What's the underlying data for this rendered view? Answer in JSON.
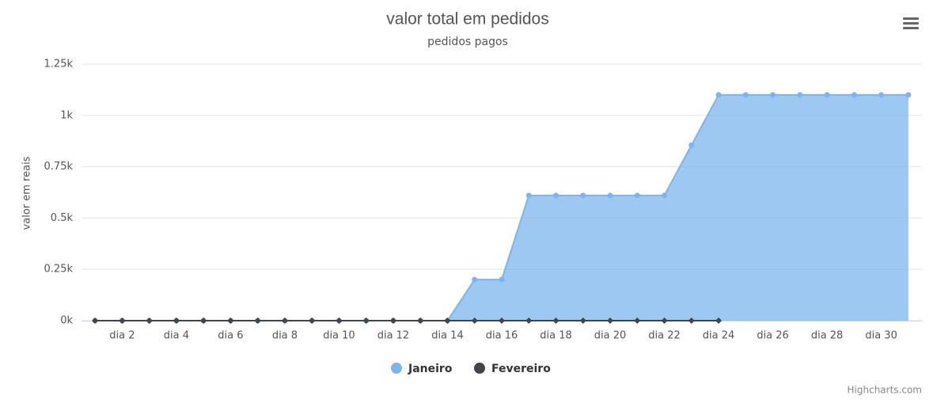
{
  "chart_data": {
    "type": "area",
    "title": "valor total em pedidos",
    "subtitle": "pedidos pagos",
    "y_label": "valor em reais",
    "credits": "Highcharts.com",
    "categories": [
      null,
      "dia 2",
      null,
      "dia 4",
      null,
      "dia 6",
      null,
      "dia 8",
      null,
      "dia 10",
      null,
      "dia 12",
      null,
      "dia 14",
      null,
      "dia 16",
      null,
      "dia 18",
      null,
      "dia 20",
      null,
      "dia 22",
      null,
      "dia 24",
      null,
      "dia 26",
      null,
      "dia 28",
      null,
      "dia 30",
      null
    ],
    "series": [
      {
        "name": "Janeiro",
        "color": "#7cb5ec",
        "values": [
          0,
          0,
          0,
          0,
          0,
          0,
          0,
          0,
          0,
          0,
          0,
          0,
          0,
          0,
          200,
          200,
          610,
          610,
          610,
          610,
          610,
          610,
          855,
          1100,
          1100,
          1100,
          1100,
          1100,
          1100,
          1100,
          1100
        ]
      },
      {
        "name": "Fevereiro",
        "color": "#434348",
        "values": [
          0,
          0,
          0,
          0,
          0,
          0,
          0,
          0,
          0,
          0,
          0,
          0,
          0,
          0,
          0,
          0,
          0,
          0,
          0,
          0,
          0,
          0,
          0,
          0,
          null,
          null,
          null,
          null,
          null,
          null,
          null
        ]
      }
    ],
    "ylim": [
      0,
      1250
    ],
    "yticks": [
      {
        "value": 0,
        "label": "0k"
      },
      {
        "value": 250,
        "label": "0.25k"
      },
      {
        "value": 500,
        "label": "0.5k"
      },
      {
        "value": 750,
        "label": "0.75k"
      },
      {
        "value": 1000,
        "label": "1k"
      },
      {
        "value": 1250,
        "label": "1.25k"
      }
    ],
    "grid": true
  }
}
